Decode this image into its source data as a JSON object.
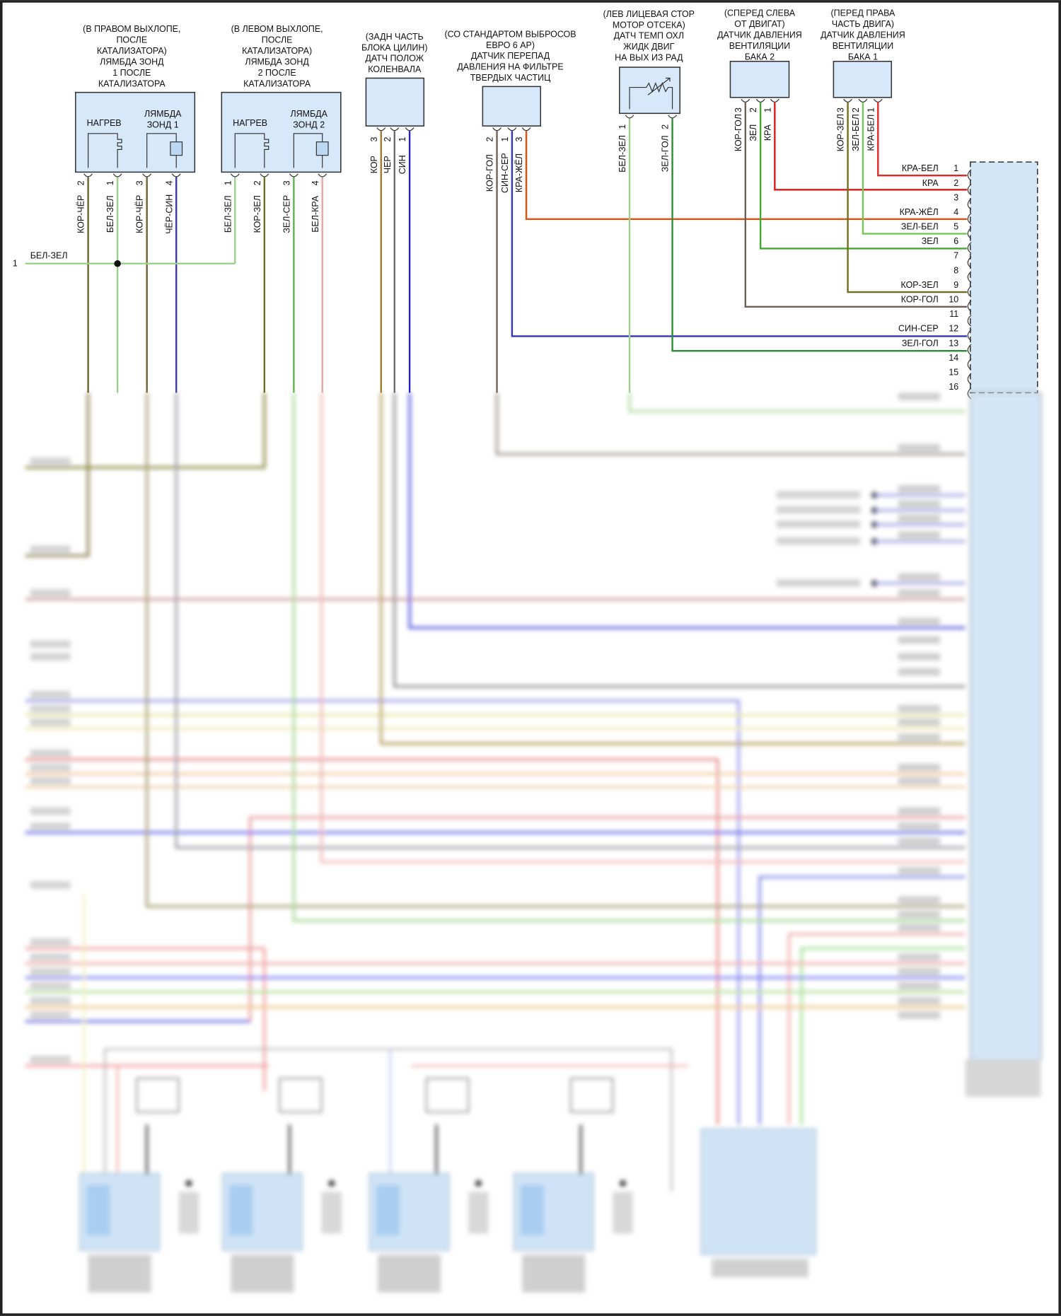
{
  "connectors": [
    {
      "title": [
        "(В ПРАВОМ ВЫХЛОПЕ,",
        "ПОСЛЕ",
        "КАТАЛИЗАТОРА)",
        "ЛЯМБДА ЗОНД",
        "1 ПОСЛЕ",
        "КАТАЛИЗАТОРА"
      ],
      "heater": "НАГРЕВ",
      "sensor": [
        "ЛЯМБДА",
        "ЗОНД 1"
      ],
      "pins": [
        {
          "num": "2",
          "wire": "КОР-ЧЁР"
        },
        {
          "num": "1",
          "wire": "БЕЛ-ЗЕЛ"
        },
        {
          "num": "3",
          "wire": "КОР-ЧЁР"
        },
        {
          "num": "4",
          "wire": "ЧЁР-СИН"
        }
      ]
    },
    {
      "title": [
        "(В ЛЕВОМ ВЫХЛОПЕ,",
        "ПОСЛЕ",
        "КАТАЛИЗАТОРА)",
        "ЛЯМБДА ЗОНД",
        "2 ПОСЛЕ",
        "КАТАЛИЗАТОРА"
      ],
      "heater": "НАГРЕВ",
      "sensor": [
        "ЛЯМБДА",
        "ЗОНД 2"
      ],
      "pins": [
        {
          "num": "1",
          "wire": "БЕЛ-ЗЕЛ"
        },
        {
          "num": "2",
          "wire": "КОР-ЗЕЛ"
        },
        {
          "num": "3",
          "wire": "ЗЕЛ-СЕР"
        },
        {
          "num": "4",
          "wire": "БЕЛ-КРА"
        }
      ]
    },
    {
      "title": [
        "(ЗАДН ЧАСТЬ",
        "БЛОКА ЦИЛИН)",
        "ДАТЧ ПОЛОЖ",
        "КОЛЕНВАЛА"
      ],
      "pins": [
        {
          "num": "3",
          "wire": "КОР"
        },
        {
          "num": "2",
          "wire": "ЧЕР"
        },
        {
          "num": "1",
          "wire": "СИН"
        }
      ]
    },
    {
      "title": [
        "(СО СТАНДАРТОМ ВЫБРОСОВ",
        "ЕВРО 6 АР)",
        "ДАТЧИК ПЕРЕПАД",
        "ДАВЛЕНИЯ НА ФИЛЬТРЕ",
        "ТВЕРДЫХ ЧАСТИЦ"
      ],
      "pins": [
        {
          "num": "2",
          "wire": "КОР-ГОЛ"
        },
        {
          "num": "1",
          "wire": "СИН-СЕР"
        },
        {
          "num": "3",
          "wire": "КРА-ЖЁЛ"
        }
      ]
    },
    {
      "title": [
        "(ЛЕВ ЛИЦЕВАЯ СТОР",
        "МОТОР ОТСЕКА)",
        "ДАТЧ ТЕМП ОХЛ",
        "ЖИДК ДВИГ",
        "НА ВЫХ ИЗ РАД"
      ],
      "pins": [
        {
          "num": "1",
          "wire": "БЕЛ-ЗЕЛ"
        },
        {
          "num": "2",
          "wire": "ЗЕЛ-ГОЛ"
        }
      ]
    },
    {
      "title": [
        "(СПЕРЕД СЛЕВА",
        "ОТ ДВИГАТ)",
        "ДАТЧИК ДАВЛЕНИЯ",
        "ВЕНТИЛЯЦИИ",
        "БАКА 2"
      ],
      "pins": [
        {
          "num": "3",
          "wire": "КОР-ГОЛ"
        },
        {
          "num": "2",
          "wire": "ЗЕЛ"
        },
        {
          "num": "1",
          "wire": "КРА"
        }
      ]
    },
    {
      "title": [
        "(ПЕРЕД ПРАВА",
        "ЧАСТЬ ДВИГА)",
        "ДАТЧИК ДАВЛЕНИЯ",
        "ВЕНТИЛЯЦИИ",
        "БАКА 1"
      ],
      "pins": [
        {
          "num": "3",
          "wire": "КОР-ЗЕЛ"
        },
        {
          "num": "2",
          "wire": "ЗЕЛ-БЕЛ"
        },
        {
          "num": "1",
          "wire": "КРА-БЕЛ"
        }
      ]
    }
  ],
  "splice": {
    "num": "1",
    "wire": "БЕЛ-ЗЕЛ"
  },
  "ecu": {
    "pins": [
      {
        "num": "1",
        "wire": "КРА-БЕЛ"
      },
      {
        "num": "2",
        "wire": "КРА"
      },
      {
        "num": "3",
        "wire": ""
      },
      {
        "num": "4",
        "wire": "КРА-ЖЁЛ"
      },
      {
        "num": "5",
        "wire": "ЗЕЛ-БЕЛ"
      },
      {
        "num": "6",
        "wire": "ЗЕЛ"
      },
      {
        "num": "7",
        "wire": ""
      },
      {
        "num": "8",
        "wire": ""
      },
      {
        "num": "9",
        "wire": "КОР-ЗЕЛ"
      },
      {
        "num": "10",
        "wire": "КОР-ГОЛ"
      },
      {
        "num": "11",
        "wire": ""
      },
      {
        "num": "12",
        "wire": "СИН-СЕР"
      },
      {
        "num": "13",
        "wire": "ЗЕЛ-ГОЛ"
      },
      {
        "num": "14",
        "wire": ""
      },
      {
        "num": "15",
        "wire": ""
      },
      {
        "num": "16",
        "wire": ""
      }
    ]
  },
  "colors": {
    "box_fill": "#d6e8fa",
    "ecu_fill": "#d3e6f8",
    "border": "#222222"
  }
}
